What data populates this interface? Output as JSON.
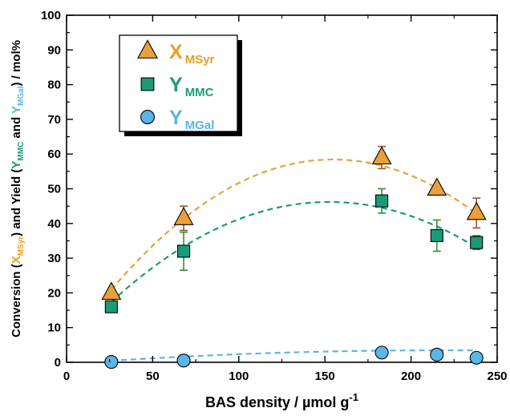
{
  "chart_data": {
    "type": "scatter",
    "xlabel": "BAS density / µmol g",
    "xlabel_sup": "-1",
    "ylabel_parts": [
      {
        "text": "Conversion (",
        "role": "normal"
      },
      {
        "text": "X",
        "role": "sym",
        "series": "X"
      },
      {
        "text": "MSyr",
        "role": "sub",
        "series": "X"
      },
      {
        "text": ") and Yield (",
        "role": "normal"
      },
      {
        "text": "Y",
        "role": "sym",
        "series": "MMC"
      },
      {
        "text": "MMC",
        "role": "sub",
        "series": "MMC"
      },
      {
        "text": " and ",
        "role": "normal"
      },
      {
        "text": "Y",
        "role": "sym",
        "series": "MGal"
      },
      {
        "text": "MGal",
        "role": "sub",
        "series": "MGal"
      },
      {
        "text": ") / mol%",
        "role": "normal"
      }
    ],
    "xlim": [
      0,
      250
    ],
    "ylim": [
      0,
      100
    ],
    "xticks": [
      0,
      50,
      100,
      150,
      200,
      250
    ],
    "yticks": [
      0,
      10,
      20,
      30,
      40,
      50,
      60,
      70,
      80,
      90,
      100
    ],
    "grid": false,
    "legend_position": "top-left",
    "series": [
      {
        "key": "X",
        "symbol": "X",
        "subscript": "MSyr",
        "marker": "triangle",
        "color": "#E8A13A",
        "text_color": "#E8A020",
        "error_color": "#A0522D",
        "line_color": "#E8A13A",
        "points": [
          {
            "x": 26,
            "y": 20.0,
            "err": 1.0
          },
          {
            "x": 68,
            "y": 41.5,
            "err": 3.5
          },
          {
            "x": 183,
            "y": 59.0,
            "err": 3.2
          },
          {
            "x": 215,
            "y": 50.0,
            "err": 1.0
          },
          {
            "x": 238,
            "y": 43.0,
            "err": 4.3
          }
        ],
        "fit": {
          "a": -0.0022626,
          "b": 0.700416,
          "c": 4.2312
        }
      },
      {
        "key": "MMC",
        "symbol": "Y",
        "subscript": "MMC",
        "marker": "square",
        "color": "#1A9B77",
        "text_color": "#1A9B77",
        "error_color": "#3A8A2E",
        "line_color": "#1A9B77",
        "points": [
          {
            "x": 26,
            "y": 16.0,
            "err": 1.5
          },
          {
            "x": 68,
            "y": 32.0,
            "err": 5.5
          },
          {
            "x": 183,
            "y": 46.5,
            "err": 3.5
          },
          {
            "x": 215,
            "y": 36.5,
            "err": 4.5
          },
          {
            "x": 238,
            "y": 34.5,
            "err": 2.0
          }
        ],
        "fit": {
          "a": -0.001799,
          "b": 0.54872,
          "c": 4.3534
        }
      },
      {
        "key": "MGal",
        "symbol": "Y",
        "subscript": "MGal",
        "marker": "circle",
        "color": "#5BB5E6",
        "text_color": "#5BB5E6",
        "error_color": "#2F6FA8",
        "line_color": "#5BB5E6",
        "points": [
          {
            "x": 26,
            "y": 0.1,
            "err": 0.3
          },
          {
            "x": 68,
            "y": 0.5,
            "err": 0.3
          },
          {
            "x": 183,
            "y": 2.8,
            "err": 0.5
          },
          {
            "x": 215,
            "y": 2.2,
            "err": 0.5
          },
          {
            "x": 238,
            "y": 1.3,
            "err": 0.4
          }
        ],
        "fit": {
          "a": -8.35e-05,
          "b": 0.03607,
          "c": -0.44
        }
      }
    ]
  }
}
